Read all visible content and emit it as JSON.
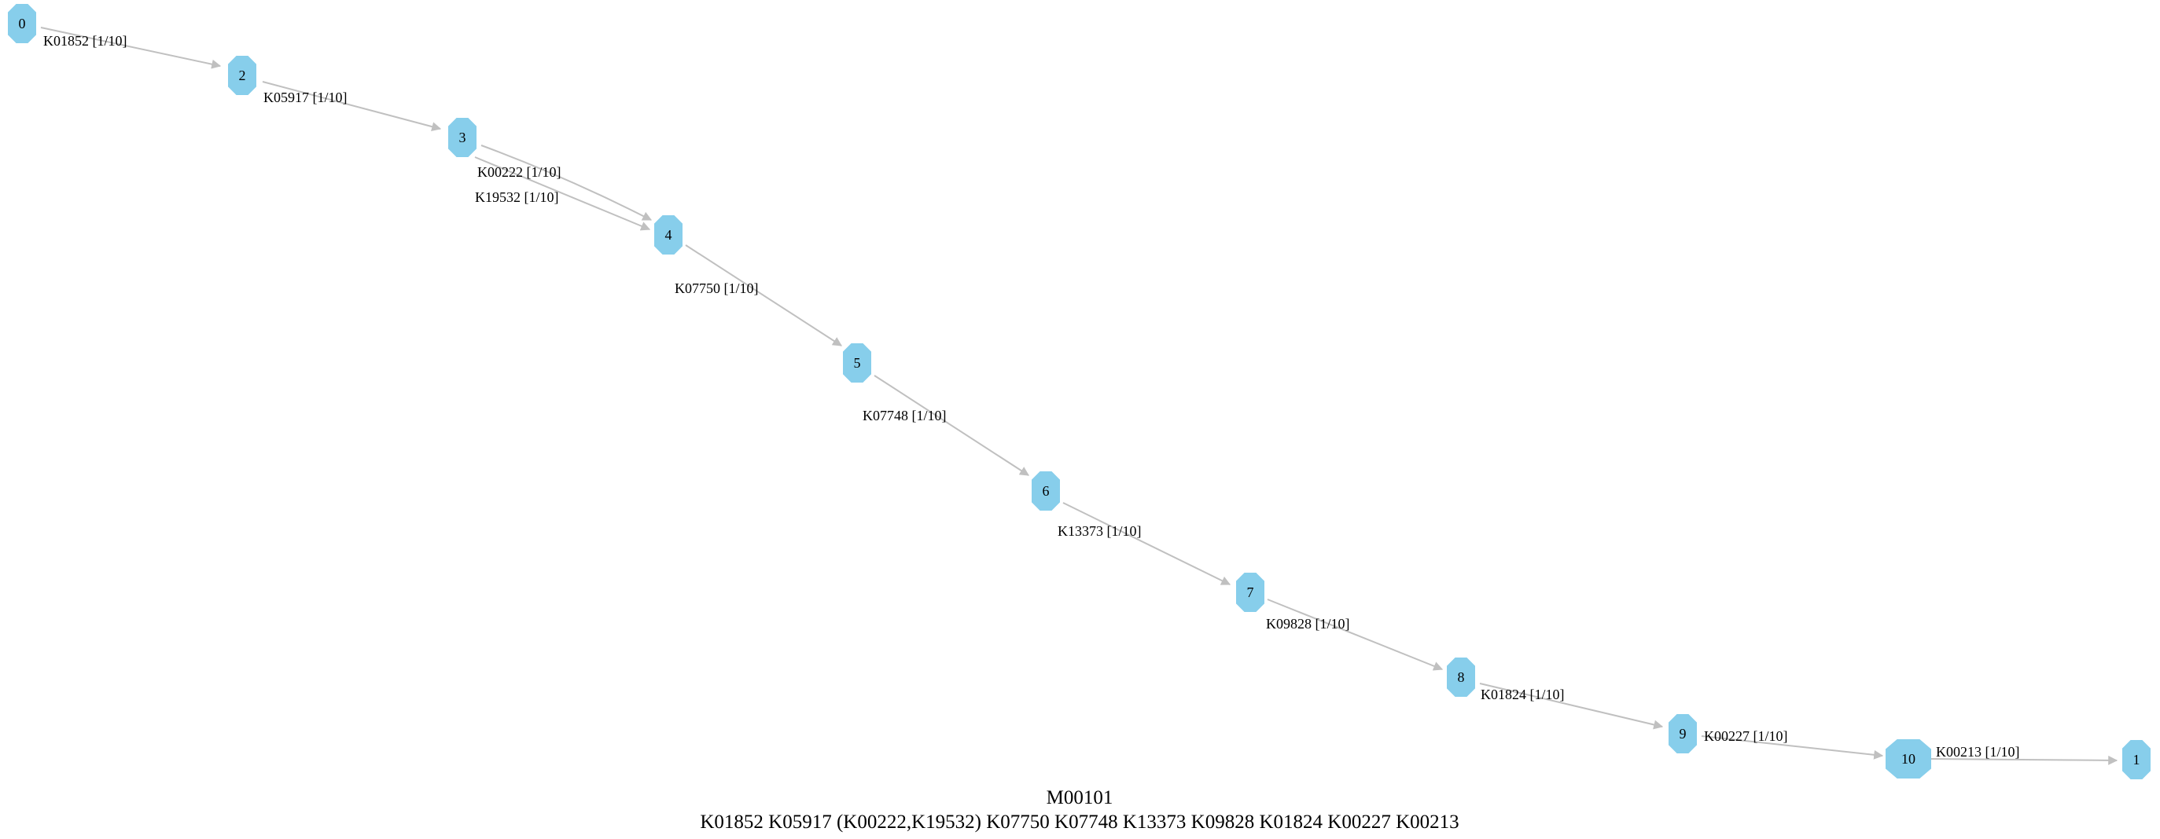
{
  "colors": {
    "node_fill": "#87ceeb",
    "edge": "#c0c0c0",
    "text": "#000000"
  },
  "nodes": [
    {
      "id": "n0",
      "label": "0"
    },
    {
      "id": "n2",
      "label": "2"
    },
    {
      "id": "n3",
      "label": "3"
    },
    {
      "id": "n4",
      "label": "4"
    },
    {
      "id": "n5",
      "label": "5"
    },
    {
      "id": "n6",
      "label": "6"
    },
    {
      "id": "n7",
      "label": "7"
    },
    {
      "id": "n8",
      "label": "8"
    },
    {
      "id": "n9",
      "label": "9"
    },
    {
      "id": "n10",
      "label": "10"
    },
    {
      "id": "n1",
      "label": "1"
    }
  ],
  "edges": [
    {
      "from": "0",
      "to": "2",
      "label": "K01852 [1/10]"
    },
    {
      "from": "2",
      "to": "3",
      "label": "K05917 [1/10]"
    },
    {
      "from": "3",
      "to": "4",
      "label": "K00222 [1/10]"
    },
    {
      "from": "3",
      "to": "4",
      "label": "K19532 [1/10]"
    },
    {
      "from": "4",
      "to": "5",
      "label": "K07750 [1/10]"
    },
    {
      "from": "5",
      "to": "6",
      "label": "K07748 [1/10]"
    },
    {
      "from": "6",
      "to": "7",
      "label": "K13373 [1/10]"
    },
    {
      "from": "7",
      "to": "8",
      "label": "K09828 [1/10]"
    },
    {
      "from": "8",
      "to": "9",
      "label": "K01824 [1/10]"
    },
    {
      "from": "9",
      "to": "10",
      "label": "K00227 [1/10]"
    },
    {
      "from": "10",
      "to": "1",
      "label": "K00213 [1/10]"
    }
  ],
  "caption": {
    "title": "M00101",
    "definition": "K01852 K05917 (K00222,K19532) K07750 K07748 K13373 K09828 K01824 K00227 K00213"
  }
}
